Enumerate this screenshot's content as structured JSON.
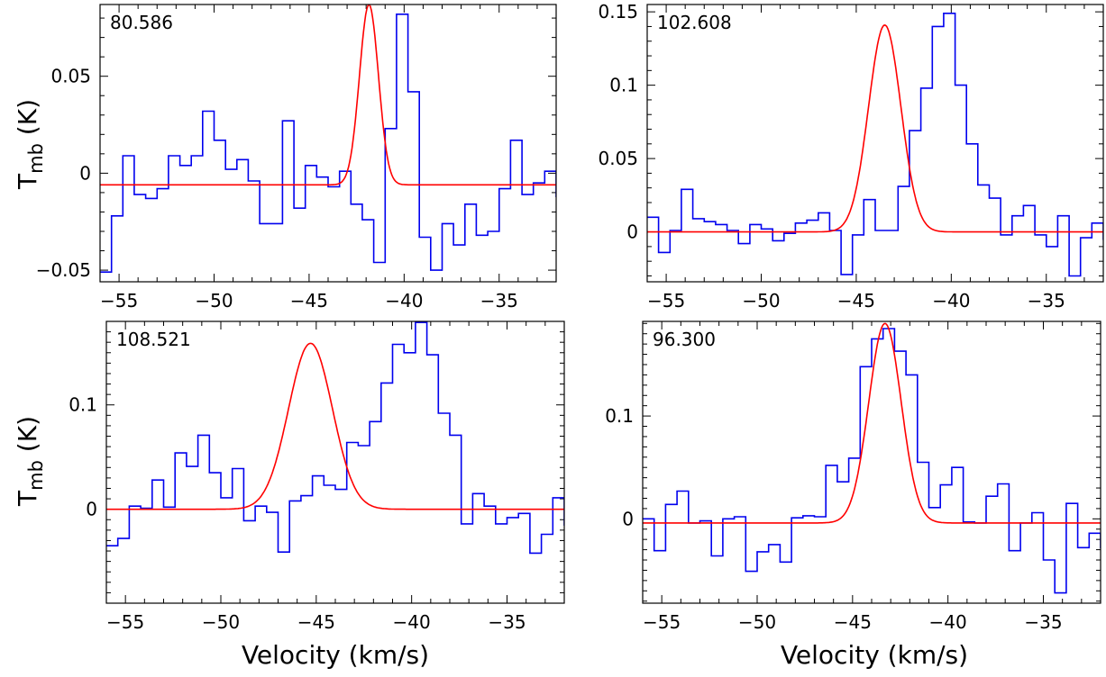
{
  "figure": {
    "ylabel_main": "T",
    "ylabel_sub": "mb",
    "ylabel_unit": " (K)",
    "xlabel": "Velocity (km/s)",
    "observed_color": "#0000ee",
    "fit_color": "#ff0000"
  },
  "chart_data": [
    {
      "type": "line",
      "label": "80.586",
      "xlim": [
        -56,
        -32
      ],
      "ylim": [
        -0.056,
        0.087
      ],
      "xticks": [
        -55,
        -50,
        -45,
        -40,
        -35
      ],
      "xtick_labels": [
        "−55",
        "−50",
        "−45",
        "−40",
        "−35"
      ],
      "yticks": [
        0.05,
        0,
        -0.05
      ],
      "ytick_labels": [
        "0.05",
        "0",
        "−0.05"
      ],
      "observed": {
        "x_start": -56,
        "step": 0.6,
        "values": [
          -0.051,
          -0.022,
          0.009,
          -0.011,
          -0.013,
          -0.008,
          0.009,
          0.004,
          0.009,
          0.032,
          0.017,
          0.002,
          0.007,
          -0.004,
          -0.026,
          -0.026,
          0.027,
          -0.018,
          0.004,
          -0.002,
          -0.007,
          0.001,
          -0.016,
          -0.024,
          -0.046,
          0.023,
          0.082,
          0.042,
          -0.033,
          -0.05,
          -0.026,
          -0.037,
          -0.016,
          -0.032,
          -0.03,
          -0.008,
          0.017,
          -0.011,
          -0.005,
          0.001,
          -0.012,
          0.003,
          0.002,
          -0.016
        ]
      },
      "fit": {
        "amplitude": 0.093,
        "center": -41.85,
        "sigma": 0.5,
        "baseline": -0.006
      }
    },
    {
      "type": "line",
      "label": "102.608",
      "xlim": [
        -56,
        -32
      ],
      "ylim": [
        -0.034,
        0.155
      ],
      "xticks": [
        -55,
        -50,
        -45,
        -40,
        -35
      ],
      "xtick_labels": [
        "−55",
        "−50",
        "−45",
        "−40",
        "−35"
      ],
      "yticks": [
        0.15,
        0.1,
        0.05,
        0
      ],
      "ytick_labels": [
        "0.15",
        "0.1",
        "0.05",
        "0"
      ],
      "observed": {
        "x_start": -56,
        "step": 0.6,
        "values": [
          0.01,
          -0.014,
          0.001,
          0.029,
          0.009,
          0.007,
          0.005,
          0.001,
          -0.008,
          0.005,
          0.002,
          -0.006,
          -0.001,
          0.006,
          0.008,
          0.013,
          0.001,
          -0.029,
          -0.002,
          0.022,
          0.001,
          0.001,
          0.031,
          0.069,
          0.098,
          0.14,
          0.149,
          0.1,
          0.06,
          0.032,
          0.023,
          -0.002,
          0.011,
          0.018,
          -0.002,
          -0.01,
          0.011,
          -0.03,
          -0.004,
          0.006,
          -0.005,
          0.004,
          0.003,
          0.022
        ]
      },
      "fit": {
        "amplitude": 0.141,
        "center": -43.5,
        "sigma": 0.85,
        "baseline": 0.0
      }
    },
    {
      "type": "line",
      "label": "108.521",
      "xlim": [
        -56,
        -32
      ],
      "ylim": [
        -0.09,
        0.18
      ],
      "xticks": [
        -55,
        -50,
        -45,
        -40,
        -35
      ],
      "xtick_labels": [
        "−55",
        "−50",
        "−45",
        "−40",
        "−35"
      ],
      "yticks": [
        0.1,
        0
      ],
      "ytick_labels": [
        "0.1",
        "0"
      ],
      "observed": {
        "x_start": -56,
        "step": 0.6,
        "values": [
          -0.035,
          -0.028,
          0.003,
          0.001,
          0.028,
          0.002,
          0.054,
          0.041,
          0.071,
          0.035,
          0.011,
          0.039,
          -0.011,
          0.003,
          -0.003,
          -0.041,
          0.008,
          0.013,
          0.032,
          0.023,
          0.019,
          0.064,
          0.061,
          0.084,
          0.121,
          0.158,
          0.15,
          0.179,
          0.148,
          0.092,
          0.071,
          -0.014,
          0.015,
          0.003,
          -0.014,
          -0.008,
          -0.004,
          -0.042,
          -0.024,
          0.011,
          -0.015,
          -0.027,
          -0.031,
          0.039,
          0.005,
          0.021,
          -0.006
        ]
      },
      "fit": {
        "amplitude": 0.159,
        "center": -45.3,
        "sigma": 1.15,
        "baseline": 0.0
      }
    },
    {
      "type": "line",
      "label": "96.300",
      "xlim": [
        -56,
        -32
      ],
      "ylim": [
        -0.082,
        0.192
      ],
      "xticks": [
        -55,
        -50,
        -45,
        -40,
        -35
      ],
      "xtick_labels": [
        "−55",
        "−50",
        "−45",
        "−40",
        "−35"
      ],
      "yticks": [
        0.1,
        0
      ],
      "ytick_labels": [
        "0.1",
        "0"
      ],
      "observed": {
        "x_start": -56,
        "step": 0.6,
        "values": [
          0.0,
          -0.031,
          0.014,
          0.027,
          -0.004,
          -0.002,
          -0.036,
          0.0,
          0.002,
          -0.051,
          -0.032,
          -0.025,
          -0.042,
          0.001,
          0.003,
          0.002,
          0.052,
          0.036,
          0.059,
          0.148,
          0.175,
          0.185,
          0.163,
          0.14,
          0.055,
          0.011,
          0.033,
          0.05,
          -0.003,
          -0.004,
          0.022,
          0.034,
          -0.031,
          -0.004,
          0.006,
          -0.04,
          -0.072,
          0.015,
          -0.028,
          -0.014,
          -0.028,
          -0.019,
          -0.005
        ]
      },
      "fit": {
        "amplitude": 0.194,
        "center": -43.3,
        "sigma": 0.85,
        "baseline": -0.004
      }
    }
  ]
}
